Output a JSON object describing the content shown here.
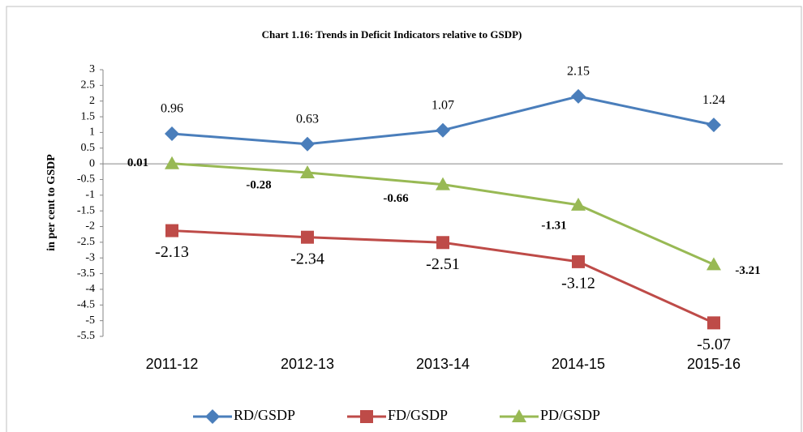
{
  "chart_data": {
    "type": "line",
    "title": "Chart 1.16: Trends  in Deficit Indicators relative to GSDP)",
    "y_label": "in per cent  to GSDP",
    "categories": [
      "2011-12",
      "2012-13",
      "2013-14",
      "2014-15",
      "2015-16"
    ],
    "series": [
      {
        "name": "RD/GSDP",
        "color": "#4a7ebb",
        "values": [
          0.96,
          0.63,
          1.07,
          2.15,
          1.24
        ]
      },
      {
        "name": "FD/GSDP",
        "color": "#be4b48",
        "values": [
          -2.13,
          -2.34,
          -2.51,
          -3.12,
          -5.07
        ]
      },
      {
        "name": "PD/GSDP",
        "color": "#98b954",
        "values": [
          0.01,
          -0.28,
          -0.66,
          -1.31,
          -3.21
        ]
      }
    ],
    "ylim": [
      -5.5,
      3
    ],
    "yticks": [
      3,
      2.5,
      2,
      1.5,
      1,
      0.5,
      0,
      -0.5,
      -1,
      -1.5,
      -2,
      -2.5,
      -3,
      -3.5,
      -4,
      -4.5,
      -5,
      -5.5
    ],
    "legend": "bottom"
  }
}
